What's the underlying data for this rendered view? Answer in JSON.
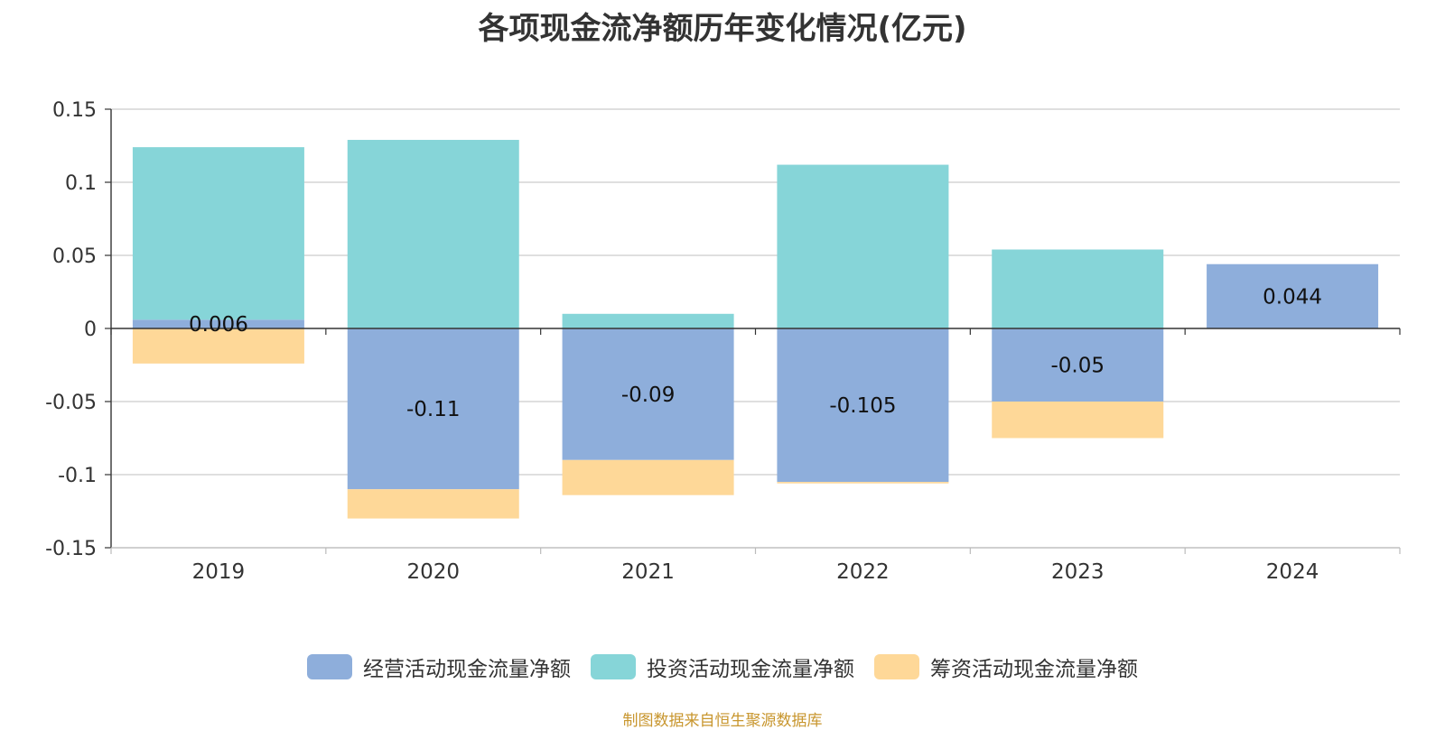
{
  "title": "各项现金流净额历年变化情况(亿元)",
  "source": "制图数据来自恒生聚源数据库",
  "chart_data": {
    "type": "bar",
    "stacked": true,
    "categories": [
      "2019",
      "2020",
      "2021",
      "2022",
      "2023",
      "2024"
    ],
    "ylim": [
      -0.15,
      0.15
    ],
    "yticks": [
      {
        "value": 0.15,
        "label": "0.15"
      },
      {
        "value": 0.1,
        "label": "0.1"
      },
      {
        "value": 0.05,
        "label": "0.05"
      },
      {
        "value": 0,
        "label": "0"
      },
      {
        "value": -0.05,
        "label": "-0.05"
      },
      {
        "value": -0.1,
        "label": "-0.1"
      },
      {
        "value": -0.15,
        "label": "-0.15"
      }
    ],
    "grid": true,
    "legend_position": "bottom",
    "series": [
      {
        "name": "经营活动现金流量净额",
        "color": "#8eaedb",
        "values": [
          0.006,
          -0.11,
          -0.09,
          -0.105,
          -0.05,
          0.044
        ],
        "labels": [
          "0.006",
          "-0.11",
          "-0.09",
          "-0.105",
          "-0.05",
          "0.044"
        ]
      },
      {
        "name": "投资活动现金流量净额",
        "color": "#86d5d8",
        "values": [
          0.118,
          0.129,
          0.01,
          0.112,
          0.054,
          0
        ]
      },
      {
        "name": "筹资活动现金流量净额",
        "color": "#fed898",
        "values": [
          -0.024,
          -0.02,
          -0.024,
          -0.001,
          -0.025,
          0
        ]
      }
    ]
  }
}
